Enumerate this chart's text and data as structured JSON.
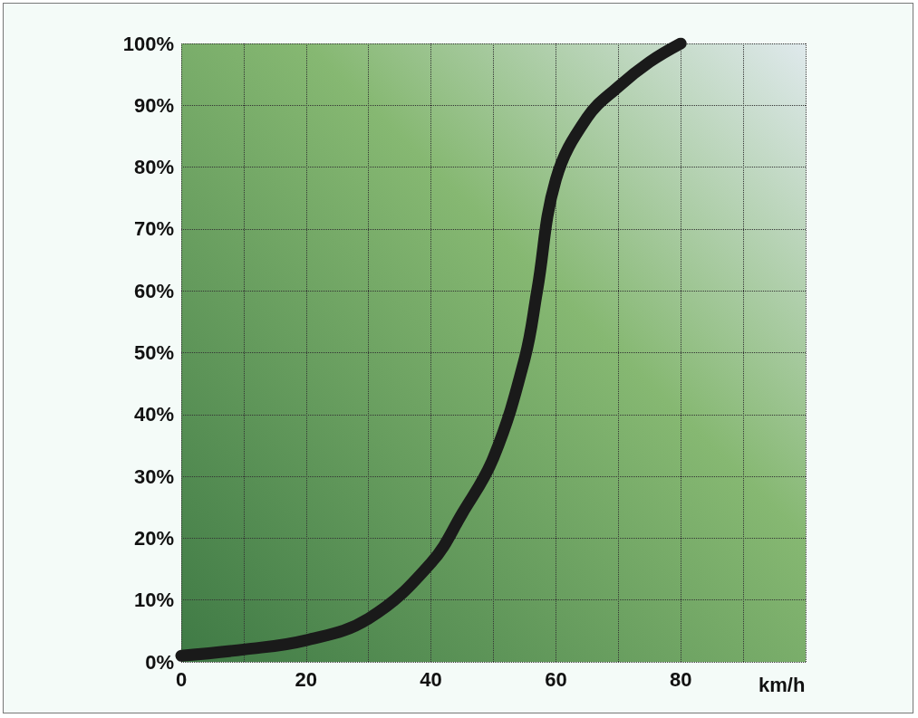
{
  "chart_data": {
    "type": "line",
    "xlabel": "km/h",
    "x": [
      0,
      10,
      20,
      30,
      40,
      45,
      50,
      55,
      57,
      60,
      65,
      70,
      75,
      80
    ],
    "series": [
      {
        "color": "#1a1a1a",
        "values": [
          1,
          2,
          3.5,
          7,
          16,
          24,
          33,
          49,
          60,
          78,
          88,
          93,
          97,
          100
        ]
      }
    ],
    "xlim": [
      0,
      100
    ],
    "xticks": [
      0,
      {
        "value": 10,
        "label": null
      },
      20,
      {
        "value": 30,
        "label": null
      },
      40,
      {
        "value": 50,
        "label": null
      },
      60,
      {
        "value": 70,
        "label": null
      },
      80,
      {
        "value": 90,
        "label": null
      },
      {
        "value": 100,
        "label": null
      }
    ],
    "ylim": [
      0,
      100
    ],
    "yticks": [
      {
        "value": 0,
        "label": "0%"
      },
      {
        "value": 10,
        "label": "10%"
      },
      {
        "value": 20,
        "label": "20%"
      },
      {
        "value": 30,
        "label": "30%"
      },
      {
        "value": 40,
        "label": "40%"
      },
      {
        "value": 50,
        "label": "50%"
      },
      {
        "value": 60,
        "label": "60%"
      },
      {
        "value": 70,
        "label": "70%"
      },
      {
        "value": 80,
        "label": "80%"
      },
      {
        "value": 90,
        "label": "90%"
      },
      {
        "value": 100,
        "label": "100%"
      }
    ],
    "grid": true,
    "line_style": "solid"
  }
}
